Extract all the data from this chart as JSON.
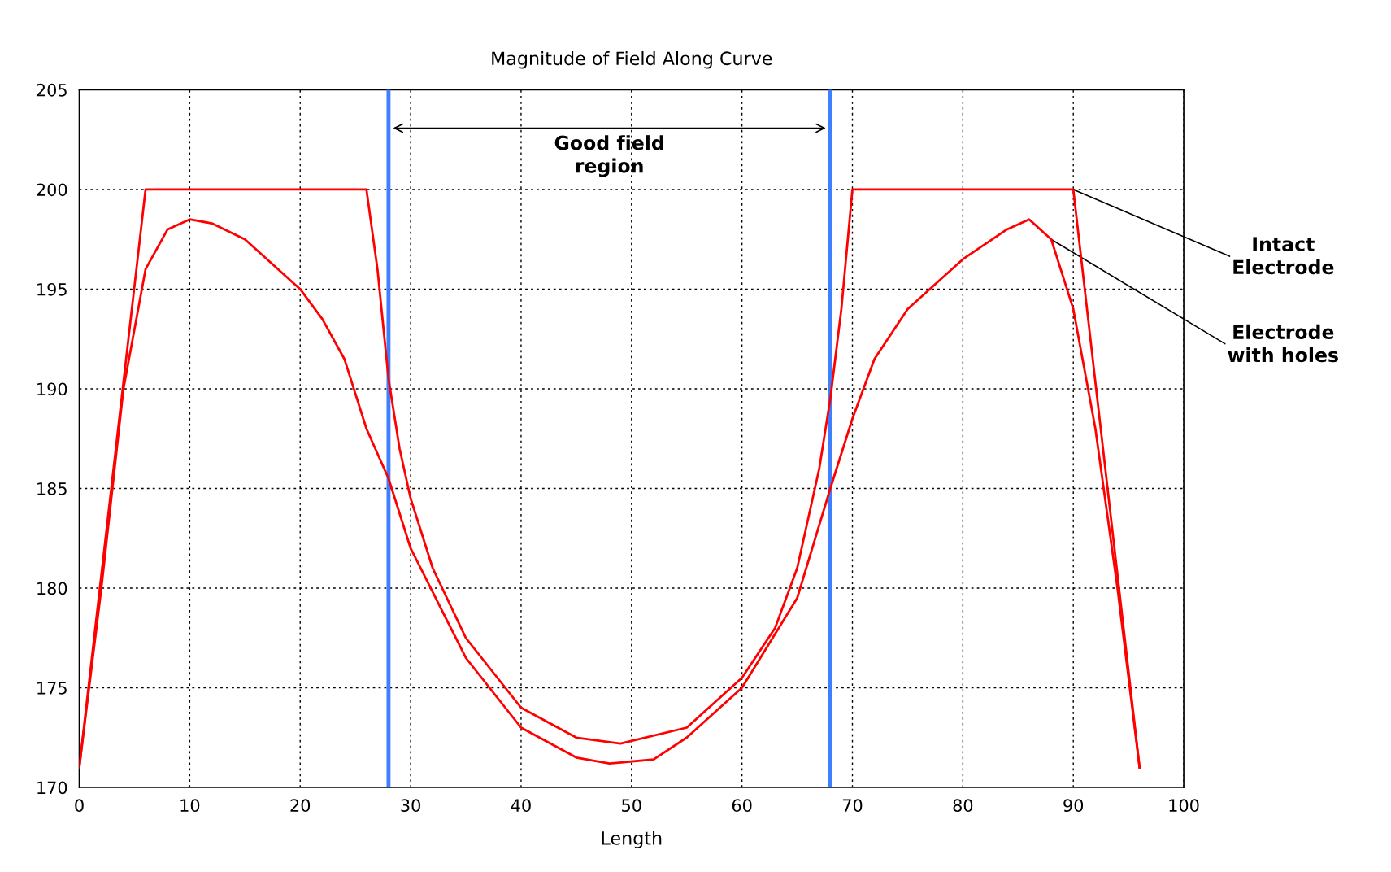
{
  "chart_data": {
    "type": "line",
    "title": "Magnitude of Field Along Curve",
    "xlabel": "Length",
    "xlim": [
      0,
      100
    ],
    "xticks": [
      0,
      10,
      20,
      30,
      40,
      50,
      60,
      70,
      80,
      90,
      100
    ],
    "ylim": [
      170,
      205
    ],
    "yticks": [
      170,
      175,
      180,
      185,
      190,
      195,
      200,
      205
    ],
    "grid": true,
    "line_style": "solid",
    "marker": "none",
    "series": [
      {
        "color": "#ff0000",
        "x": [
          0,
          6,
          26,
          27,
          28,
          29,
          30,
          32,
          35,
          40,
          45,
          49,
          55,
          60,
          63,
          65,
          67,
          68,
          69,
          70,
          90,
          96
        ],
        "values": [
          171,
          200,
          200,
          196,
          190.5,
          187,
          184.5,
          181,
          177.5,
          174,
          172.5,
          172.2,
          173,
          175.5,
          178,
          181,
          186,
          189.5,
          194,
          200,
          200,
          171
        ]
      },
      {
        "color": "#ff0000",
        "x": [
          0,
          2,
          4,
          6,
          8,
          10,
          12,
          15,
          20,
          22,
          24,
          26,
          28,
          30,
          35,
          40,
          45,
          48,
          52,
          55,
          60,
          65,
          68,
          70,
          72,
          75,
          80,
          84,
          86,
          88,
          90,
          92,
          94,
          96
        ],
        "values": [
          171,
          180,
          190,
          196,
          198,
          198.5,
          198.3,
          197.5,
          195,
          193.5,
          191.5,
          188,
          185.5,
          182,
          176.5,
          173,
          171.5,
          171.2,
          171.4,
          172.5,
          175,
          179.5,
          185,
          188.5,
          191.5,
          194,
          196.5,
          198,
          198.5,
          197.5,
          194,
          188,
          180,
          171
        ]
      }
    ],
    "ref_lines": [
      {
        "axis": "x",
        "value": 28,
        "color": "#3d7fff"
      },
      {
        "axis": "x",
        "value": 68,
        "color": "#3d7fff"
      }
    ],
    "annotations": [
      "Good field\nregion",
      {
        "text": "Intact\nElectrode",
        "x": 90,
        "y": 200
      },
      {
        "text": "Electrode\nwith holes",
        "x": 88,
        "y": 197.5
      }
    ]
  }
}
